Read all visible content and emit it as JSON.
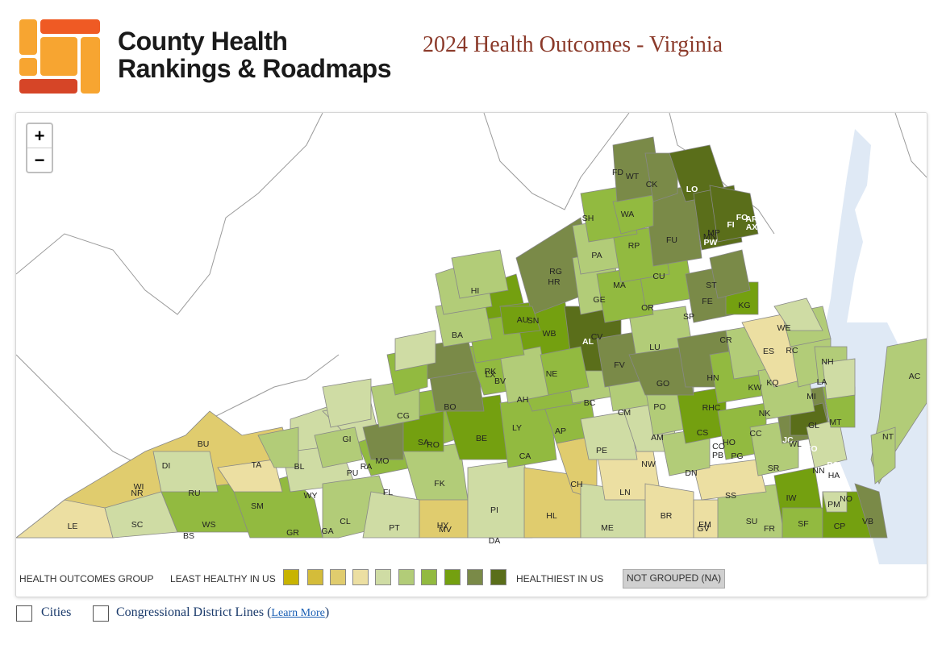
{
  "header": {
    "logo_line1": "County Health",
    "logo_line2": "Rankings & Roadmaps",
    "title": "2024 Health Outcomes - Virginia"
  },
  "map": {
    "zoom_in": "+",
    "zoom_out": "−",
    "county_labels": [
      "FD",
      "WT",
      "CK",
      "LO",
      "FO",
      "AR",
      "AX",
      "FI",
      "MP",
      "MN",
      "PW",
      "SH",
      "WA",
      "FU",
      "RP",
      "PA",
      "CU",
      "RG",
      "HR",
      "MA",
      "ST",
      "GE",
      "OR",
      "FE",
      "KG",
      "AU",
      "SN",
      "WB",
      "SP",
      "AL",
      "CV",
      "WE",
      "HI",
      "BA",
      "LU",
      "CR",
      "RC",
      "ES",
      "NH",
      "FV",
      "HN",
      "RK",
      "LX",
      "BV",
      "NE",
      "GO",
      "LA",
      "KQ",
      "KW",
      "AH",
      "BC",
      "MI",
      "BO",
      "CG",
      "PO",
      "RHC",
      "NK",
      "GL",
      "MT",
      "GI",
      "CM",
      "LY",
      "AP",
      "CS",
      "CC",
      "HO",
      "SA",
      "RO",
      "RA",
      "JC",
      "BE",
      "WL",
      "YO",
      "MO",
      "AM",
      "PB",
      "PG",
      "BU",
      "TA",
      "DI",
      "CA",
      "PE",
      "CO",
      "PQ",
      "HA",
      "BL",
      "PU",
      "NW",
      "DN",
      "SR",
      "NN",
      "WI",
      "NR",
      "RU",
      "WY",
      "FK",
      "CH",
      "FL",
      "SS",
      "IW",
      "NO",
      "PM",
      "SM",
      "LN",
      "VB",
      "BR",
      "PI",
      "SU",
      "FR",
      "SF",
      "CP",
      "HL",
      "EM",
      "GV",
      "LE",
      "SC",
      "WS",
      "CL",
      "BS",
      "GR",
      "GA",
      "PT",
      "HY",
      "MV",
      "ME",
      "DA",
      "NT",
      "AC"
    ]
  },
  "legend": {
    "group_label": "HEALTH OUTCOMES GROUP",
    "least_label": "LEAST HEALTHY IN US",
    "healthiest_label": "HEALTHIEST IN US",
    "not_grouped": "NOT GROUPED (NA)",
    "colors": [
      "#c8b400",
      "#d4bc3a",
      "#e0cc6e",
      "#ecdfa2",
      "#cfdca4",
      "#b2cc78",
      "#92ba40",
      "#74a010",
      "#7a8a48",
      "#5a6e1a"
    ]
  },
  "controls": {
    "cities_label": "Cities",
    "districts_label": "Congressional District Lines (",
    "learn_more": "Learn More",
    "close_paren": ")"
  }
}
